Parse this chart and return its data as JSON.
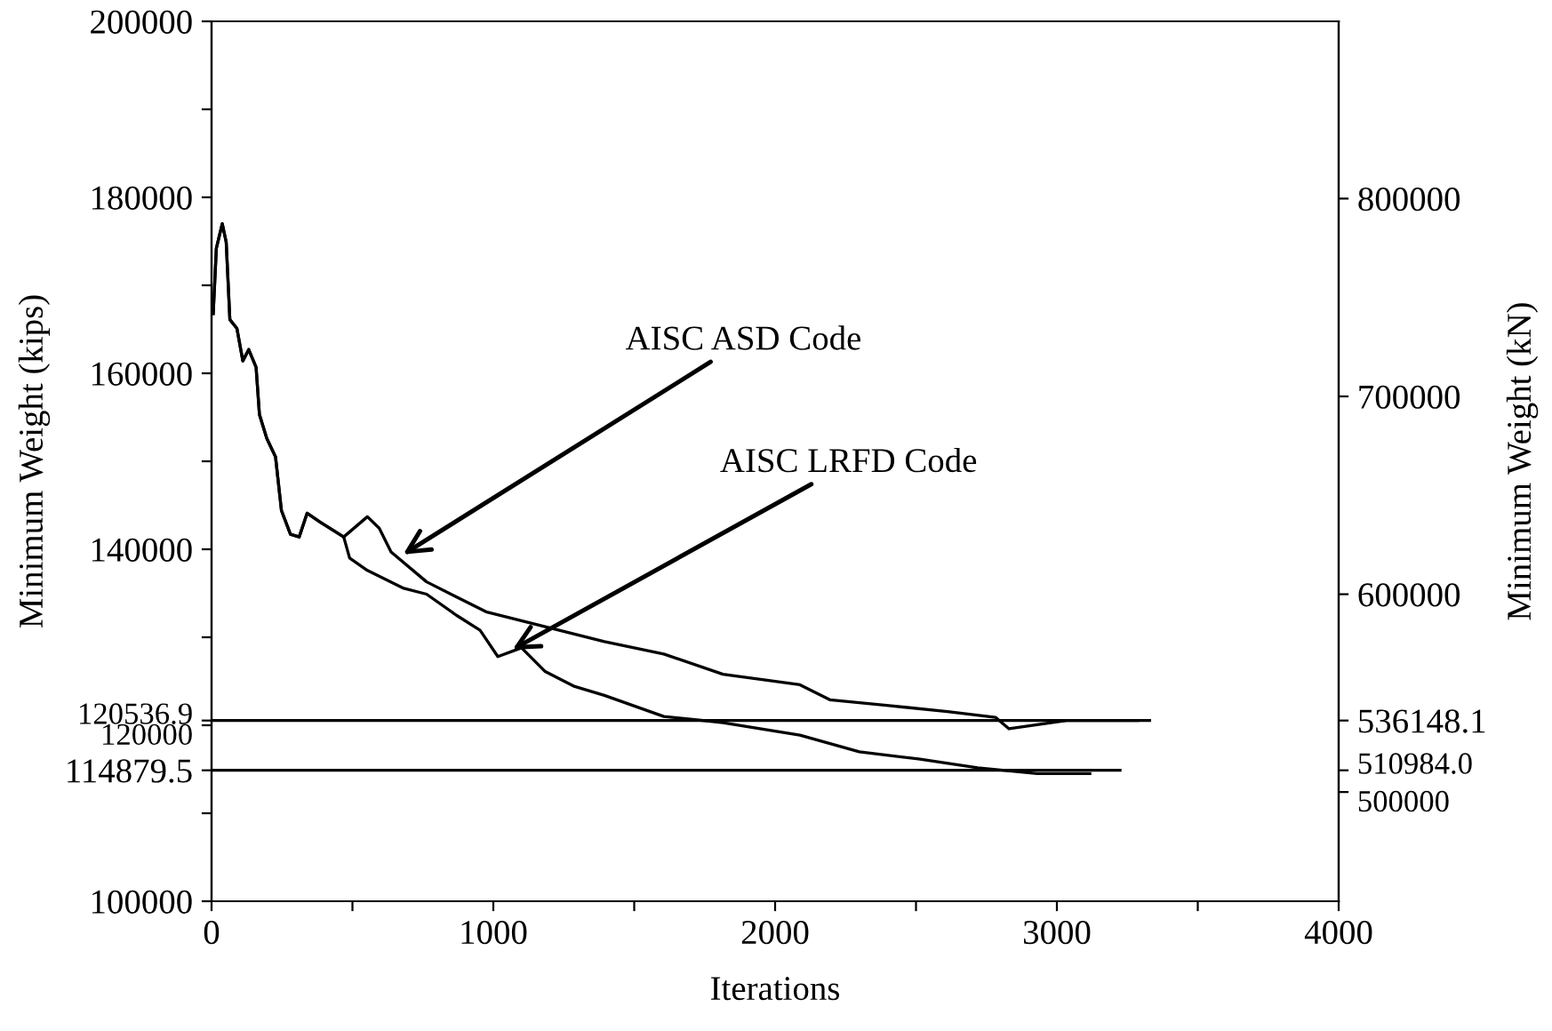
{
  "chart_data": {
    "type": "line",
    "xlabel": "Iterations",
    "ylabel": "Minimum Weight (kips)",
    "y2label": "Minimum Weight (kN)",
    "xlim": [
      0,
      4000
    ],
    "xticks": [
      0,
      {
        "value": 500,
        "label": null
      },
      1000,
      {
        "value": 1500,
        "label": null
      },
      2000,
      {
        "value": 2500,
        "label": null
      },
      3000,
      {
        "value": 3500,
        "label": null
      },
      4000
    ],
    "ylim": [
      100000,
      200000
    ],
    "yticks": [
      100000,
      {
        "value": 110000,
        "label": null
      },
      {
        "value": 114879.5,
        "label": "114879.5"
      },
      120000,
      {
        "value": 120536.9,
        "label": "120536.9"
      },
      {
        "value": 130000,
        "label": null
      },
      140000,
      {
        "value": 150000,
        "label": null
      },
      160000,
      {
        "value": 170000,
        "label": null
      },
      180000,
      {
        "value": 190000,
        "label": null
      },
      200000
    ],
    "y2lim": [
      444800,
      889600
    ],
    "y2ticks": [
      500000,
      {
        "value": 510984.0,
        "label": "510984.0"
      },
      536148.1,
      600000,
      700000,
      800000
    ],
    "grid": false,
    "marker": "none",
    "line_style": "solid",
    "series": [
      {
        "color": "#000000",
        "x": [
          6,
          17,
          38,
          52,
          65,
          90,
          111,
          132,
          158,
          170,
          196,
          227,
          248,
          280,
          311,
          339,
          385,
          469,
          553,
          595,
          637,
          763,
          974,
          1184,
          1394,
          1605,
          1815,
          2088,
          2194,
          2404,
          2612,
          2782,
          2830,
          3035,
          3287
        ],
        "values": [
          166780,
          174200,
          177000,
          174900,
          166100,
          165100,
          161400,
          162700,
          160700,
          155300,
          152600,
          150500,
          144400,
          141700,
          141400,
          144100,
          143100,
          141400,
          143700,
          142400,
          139700,
          136300,
          132900,
          131200,
          129500,
          128100,
          125800,
          124600,
          122900,
          122230,
          121560,
          120900,
          119600,
          120550,
          120536.9
        ]
      },
      {
        "color": "#000000",
        "x": [
          6,
          17,
          38,
          52,
          65,
          90,
          111,
          132,
          158,
          170,
          196,
          227,
          248,
          280,
          311,
          339,
          385,
          469,
          490,
          553,
          679,
          763,
          869,
          953,
          1016,
          1100,
          1184,
          1289,
          1394,
          1605,
          1815,
          2088,
          2299,
          2509,
          2719,
          2930,
          3117
        ],
        "values": [
          166780,
          174200,
          177000,
          174900,
          166100,
          165100,
          161400,
          162700,
          160700,
          155300,
          152600,
          150500,
          144400,
          141700,
          141400,
          144100,
          143100,
          141400,
          139000,
          137600,
          135600,
          134900,
          132500,
          130800,
          127800,
          128800,
          126100,
          124400,
          123400,
          121000,
          120300,
          118870,
          116980,
          116170,
          115160,
          114500,
          114500
        ]
      },
      {
        "color": "#000000",
        "x": [
          0,
          3329
        ],
        "values": [
          120536.9,
          120536.9
        ]
      },
      {
        "color": "#000000",
        "x": [
          0,
          3224
        ],
        "values": [
          114879.5,
          114879.5
        ]
      }
    ],
    "annotations": [
      {
        "text": "AISC ASD Code",
        "x": 680,
        "y": 139410
      },
      {
        "text": "AISC LRFD Code",
        "x": 1068,
        "y": 128600
      }
    ]
  }
}
